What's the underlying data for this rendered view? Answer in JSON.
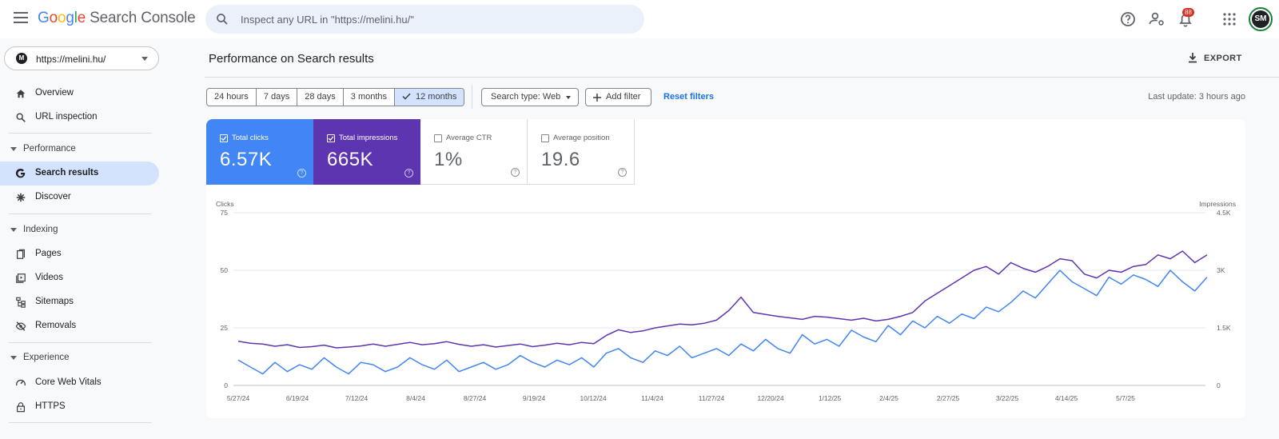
{
  "app": {
    "logo_letters": [
      "G",
      "o",
      "o",
      "g",
      "l",
      "e"
    ],
    "product": "Search Console"
  },
  "search": {
    "placeholder": "Inspect any URL in \"https://melini.hu/\""
  },
  "topbar": {
    "notification_count": "88",
    "avatar_initials": "SM"
  },
  "property": {
    "mark": "M",
    "label": "https://melini.hu/"
  },
  "sidebar": {
    "overview": "Overview",
    "url_inspection": "URL inspection",
    "performance": "Performance",
    "search_results": "Search results",
    "discover": "Discover",
    "indexing": "Indexing",
    "pages": "Pages",
    "videos": "Videos",
    "sitemaps": "Sitemaps",
    "removals": "Removals",
    "experience": "Experience",
    "core_web_vitals": "Core Web Vitals",
    "https": "HTTPS"
  },
  "header": {
    "title": "Performance on Search results",
    "export": "EXPORT"
  },
  "filters": {
    "ranges": [
      "24 hours",
      "7 days",
      "28 days",
      "3 months",
      "12 months"
    ],
    "selected_range": "12 months",
    "search_type": "Search type: Web",
    "add_filter": "Add filter",
    "reset": "Reset filters",
    "last_update": "Last update: 3 hours ago"
  },
  "metrics": {
    "clicks": {
      "label": "Total clicks",
      "value": "6.57K",
      "color": "#4285f4",
      "checked": true
    },
    "impressions": {
      "label": "Total impressions",
      "value": "665K",
      "color": "#5e35b1",
      "checked": true
    },
    "ctr": {
      "label": "Average CTR",
      "value": "1%",
      "checked": false
    },
    "position": {
      "label": "Average position",
      "value": "19.6",
      "checked": false
    }
  },
  "chart_data": {
    "type": "line",
    "ylabel_left": "Clicks",
    "ylabel_right": "Impressions",
    "yticks_left": [
      "75",
      "50",
      "25",
      "0"
    ],
    "yticks_right": [
      "4.5K",
      "3K",
      "1.5K",
      "0"
    ],
    "ylim_left": [
      0,
      75
    ],
    "ylim_right": [
      0,
      4500
    ],
    "grid": true,
    "x_tick_labels": [
      "5/27/24",
      "6/19/24",
      "7/12/24",
      "8/4/24",
      "8/27/24",
      "9/19/24",
      "10/12/24",
      "11/4/24",
      "11/27/24",
      "12/20/24",
      "1/12/25",
      "2/4/25",
      "2/27/25",
      "3/22/25",
      "4/14/25",
      "5/7/25"
    ],
    "series": [
      {
        "name": "Clicks",
        "axis": "left",
        "color": "#4285f4",
        "values": [
          11,
          8,
          5,
          10,
          6,
          9,
          7,
          12,
          8,
          5,
          10,
          9,
          6,
          8,
          12,
          9,
          7,
          11,
          6,
          8,
          10,
          7,
          9,
          13,
          10,
          8,
          11,
          9,
          12,
          8,
          14,
          16,
          12,
          10,
          15,
          13,
          17,
          12,
          14,
          16,
          13,
          18,
          15,
          20,
          16,
          14,
          22,
          18,
          20,
          17,
          24,
          21,
          19,
          26,
          22,
          28,
          25,
          30,
          27,
          31,
          29,
          34,
          32,
          36,
          41,
          38,
          44,
          50,
          45,
          42,
          39,
          47,
          44,
          48,
          46,
          43,
          50,
          45,
          41,
          47
        ],
        "note": "weekly approximation"
      },
      {
        "name": "Impressions",
        "axis": "right",
        "color": "#5e35b1",
        "values": [
          1150,
          1100,
          1080,
          1020,
          1060,
          990,
          1010,
          1050,
          980,
          1000,
          1030,
          1080,
          1020,
          1070,
          1120,
          1060,
          1090,
          1140,
          1070,
          1020,
          1060,
          1000,
          1040,
          1080,
          1010,
          1050,
          1100,
          1060,
          1120,
          1090,
          1300,
          1450,
          1380,
          1420,
          1500,
          1550,
          1600,
          1580,
          1620,
          1700,
          1950,
          2300,
          1900,
          1850,
          1800,
          1760,
          1720,
          1800,
          1780,
          1740,
          1700,
          1750,
          1680,
          1720,
          1800,
          1900,
          2200,
          2400,
          2600,
          2800,
          3000,
          3100,
          2900,
          3200,
          3050,
          2950,
          3100,
          3300,
          3250,
          2900,
          2800,
          3000,
          2950,
          3100,
          3150,
          3400,
          3300,
          3500,
          3200,
          3400
        ],
        "note": "weekly approximation"
      }
    ]
  }
}
